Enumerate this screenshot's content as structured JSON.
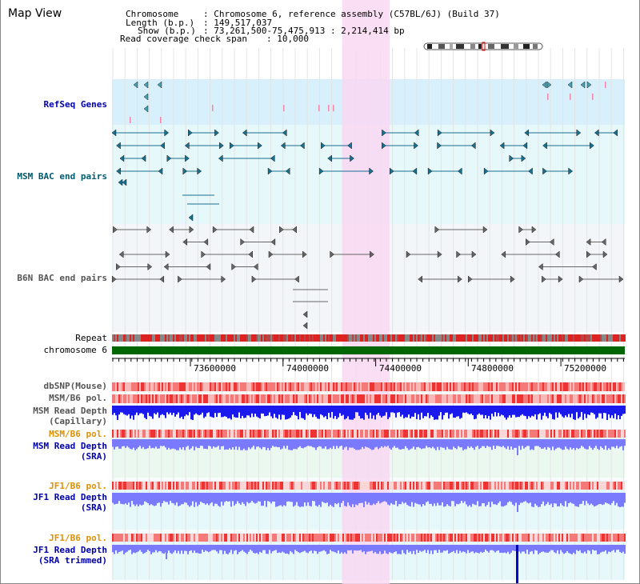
{
  "panel": {
    "title": "Map View"
  },
  "header": {
    "chromosome_label": "Chromosome",
    "chromosome_value": ": Chromosome 6, reference assembly (C57BL/6J) (Build 37)",
    "length_label": "Length (b.p.)",
    "length_value": ": 149,517,037",
    "show_label": "Show (b.p.)",
    "show_value": ": 73,261,500-75,475,913 : 2,214,414 bp",
    "coverage_label": "Read coverage check span",
    "coverage_value": ": 10,000"
  },
  "tracks": {
    "refseq": "RefSeq Genes",
    "msm_bac": "MSM BAC end pairs",
    "b6n_bac": "B6N BAC end pairs",
    "repeat": "Repeat",
    "chromosome": "chromosome 6",
    "dbsnp": "dbSNP(Mouse)",
    "msm_b6_pol_1": "MSM/B6 pol.",
    "msm_depth_cap_1": "MSM Read Depth",
    "msm_depth_cap_2": "(Capillary)",
    "msm_b6_pol_2": "MSM/B6 pol.",
    "msm_depth_sra_1": "MSM Read Depth",
    "msm_depth_sra_2": "(SRA)",
    "jf1_b6_pol_1": "JF1/B6 pol.",
    "jf1_depth_sra_1": "JF1 Read Depth",
    "jf1_depth_sra_2": "(SRA)",
    "jf1_b6_pol_2": "JF1/B6 pol.",
    "jf1_depth_trim_1": "JF1 Read Depth",
    "jf1_depth_trim_2": "(SRA trimmed)"
  },
  "axis": {
    "ticks": [
      "73600000",
      "74000000",
      "74400000",
      "74800000",
      "75200000"
    ],
    "tick_values": [
      73600000,
      74000000,
      74400000,
      74800000,
      75200000
    ],
    "range": [
      73261500,
      75475913
    ]
  },
  "highlight": {
    "range": [
      74255000,
      74460000
    ],
    "color": "#f9d8f2"
  },
  "colors": {
    "refseq_bg": "#d8f0fb",
    "bac_bg": "#e6f8fa",
    "b6n_bg": "#f2f6f8",
    "msm_teal": "#1a6e8e",
    "b6n_gray": "#666666",
    "chromosome": "#006600",
    "repeat_red": "#dd2222",
    "depth_blue": "#1a1aee",
    "depth_light": "#7a7aff",
    "pol_red": "#ee3333",
    "pol_light": "#f8b8b8"
  }
}
